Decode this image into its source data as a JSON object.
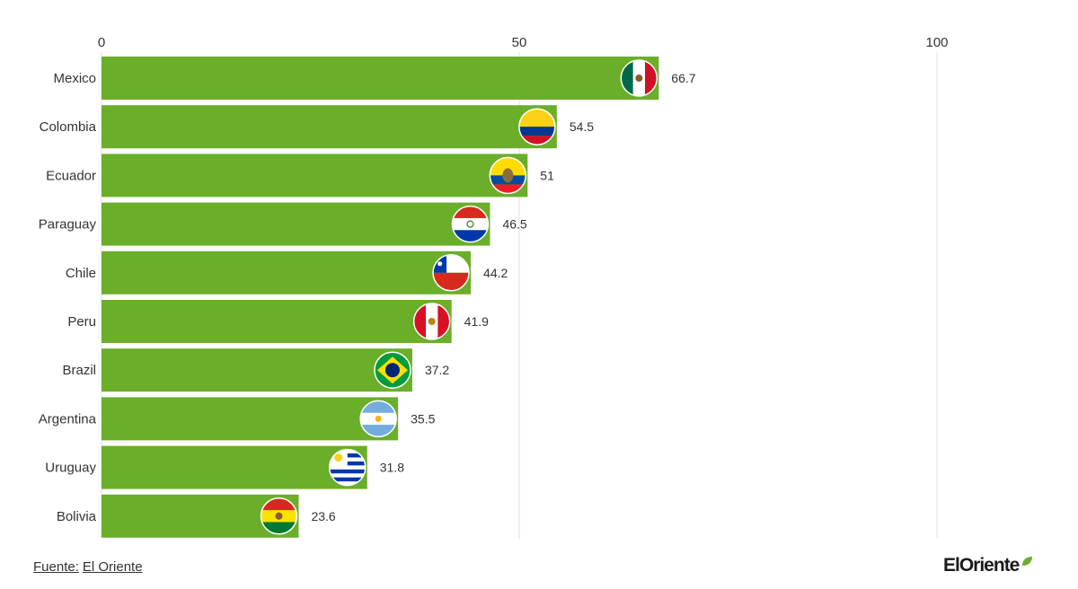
{
  "chart_data": {
    "type": "bar",
    "orientation": "horizontal",
    "categories": [
      "Mexico",
      "Colombia",
      "Ecuador",
      "Paraguay",
      "Chile",
      "Peru",
      "Brazil",
      "Argentina",
      "Uruguay",
      "Bolivia"
    ],
    "values": [
      66.7,
      54.5,
      51,
      46.5,
      44.2,
      41.9,
      37.2,
      35.5,
      31.8,
      23.6
    ],
    "value_labels": [
      "66.7",
      "54.5",
      "51",
      "46.5",
      "44.2",
      "41.9",
      "37.2",
      "35.5",
      "31.8",
      "23.6"
    ],
    "flag_icons": [
      "mexico-flag-icon",
      "colombia-flag-icon",
      "ecuador-flag-icon",
      "paraguay-flag-icon",
      "chile-flag-icon",
      "peru-flag-icon",
      "brazil-flag-icon",
      "argentina-flag-icon",
      "uruguay-flag-icon",
      "bolivia-flag-icon"
    ],
    "x_ticks": [
      0,
      50,
      100
    ],
    "x_tick_labels": [
      "0",
      "50",
      "100"
    ],
    "xlim": [
      0,
      100
    ],
    "axis_position": "top",
    "grid": true,
    "bar_color": "#6aae2a",
    "grid_color": "#e0e0e0",
    "title": "",
    "xlabel": "",
    "ylabel": ""
  },
  "footer": {
    "source_prefix": "Fuente:",
    "source_name": "El Oriente"
  },
  "logo": {
    "text": "ElOriente",
    "accent_color": "#6aae2a"
  }
}
